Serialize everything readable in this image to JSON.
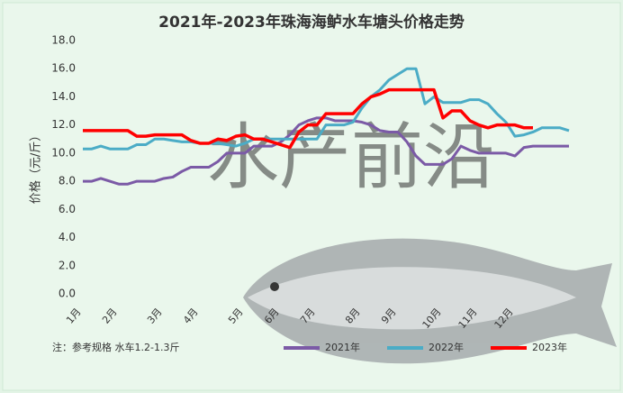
{
  "chart_data": {
    "type": "line",
    "title": "2021年-2023年珠海海鲈水车塘头价格走势",
    "y_label": "价格（元/斤）",
    "note": "注：参考规格  水车1.2-1.3斤",
    "watermark": "水产前沿",
    "categories": [
      "1月",
      null,
      null,
      null,
      "2月",
      null,
      null,
      null,
      null,
      "3月",
      null,
      null,
      null,
      "4月",
      null,
      null,
      null,
      null,
      "5月",
      null,
      null,
      null,
      "6月",
      null,
      null,
      null,
      "7月",
      null,
      null,
      null,
      null,
      "8月",
      null,
      null,
      null,
      "9月",
      null,
      null,
      null,
      null,
      "10月",
      null,
      null,
      null,
      "11月",
      null,
      null,
      null,
      "12月",
      null,
      null,
      null,
      null,
      null,
      null
    ],
    "series": [
      {
        "name": "2021年",
        "color": "#7b5aa6",
        "values": [
          8.0,
          8.0,
          8.2,
          8.0,
          7.8,
          7.8,
          8.0,
          8.0,
          8.0,
          8.2,
          8.3,
          8.7,
          9.0,
          9.0,
          9.0,
          9.4,
          10.0,
          10.0,
          10.0,
          10.5,
          10.5,
          10.5,
          10.8,
          11.3,
          12.0,
          12.3,
          12.5,
          12.5,
          12.3,
          12.3,
          12.3,
          12.2,
          12.0,
          11.6,
          11.5,
          11.5,
          10.8,
          9.8,
          9.2,
          9.2,
          9.2,
          9.6,
          10.5,
          10.2,
          10.0,
          10.0,
          10.0,
          10.0,
          9.8,
          10.4,
          10.5,
          10.5,
          10.5,
          10.5,
          10.5
        ]
      },
      {
        "name": "2022年",
        "color": "#4bacc6",
        "values": [
          10.3,
          10.3,
          10.5,
          10.3,
          10.3,
          10.3,
          10.6,
          10.6,
          11.0,
          11.0,
          10.9,
          10.8,
          10.8,
          10.7,
          10.7,
          10.7,
          10.6,
          10.5,
          10.7,
          11.0,
          11.0,
          11.0,
          11.0,
          11.0,
          11.0,
          11.0,
          11.0,
          12.0,
          12.0,
          12.0,
          12.2,
          13.2,
          14.0,
          14.5,
          15.2,
          15.6,
          16.0,
          16.0,
          13.5,
          14.0,
          13.6,
          13.6,
          13.6,
          13.8,
          13.8,
          13.5,
          12.8,
          12.2,
          11.2,
          11.3,
          11.5,
          11.8,
          11.8,
          11.8,
          11.6
        ]
      },
      {
        "name": "2023年",
        "color": "#ff0000",
        "values": [
          11.6,
          11.6,
          11.6,
          11.6,
          11.6,
          11.6,
          11.2,
          11.2,
          11.3,
          11.3,
          11.3,
          11.3,
          10.9,
          10.7,
          10.7,
          11.0,
          10.9,
          11.2,
          11.3,
          11.0,
          11.0,
          10.8,
          10.6,
          10.4,
          11.5,
          12.0,
          12.0,
          12.8,
          12.8,
          12.8,
          12.8,
          13.5,
          14.0,
          14.2,
          14.5,
          14.5,
          14.5,
          14.5,
          14.5,
          14.5,
          12.5,
          13.0,
          13.0,
          12.3,
          12.0,
          11.8,
          12.0,
          12.0,
          12.0,
          11.8,
          11.8,
          null,
          null,
          null,
          null
        ]
      }
    ],
    "ylim": [
      0,
      18
    ],
    "yticks": [
      {
        "value": 0,
        "label": "0.0"
      },
      {
        "value": 2,
        "label": "2.0"
      },
      {
        "value": 4,
        "label": "4.0"
      },
      {
        "value": 6,
        "label": "6.0"
      },
      {
        "value": 8,
        "label": "8.0"
      },
      {
        "value": 10,
        "label": "10.0"
      },
      {
        "value": 12,
        "label": "12.0"
      },
      {
        "value": 14,
        "label": "14.0"
      },
      {
        "value": 16,
        "label": "16.0"
      },
      {
        "value": 18,
        "label": "18.0"
      }
    ],
    "grid": false
  }
}
